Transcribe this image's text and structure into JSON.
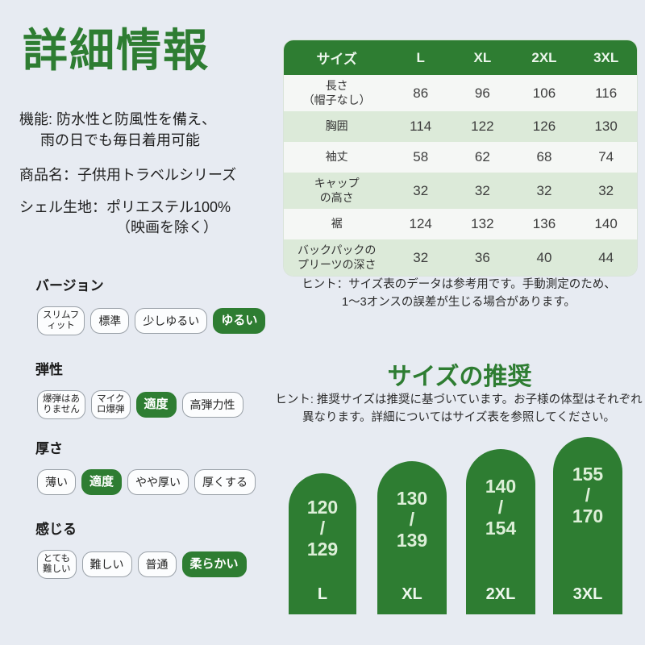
{
  "page": {
    "title": "詳細情報",
    "colors": {
      "accent_green": "#2e7d32",
      "row_green": "#dcead9",
      "row_white": "#f5f7f5",
      "background": "#e7ebf2"
    }
  },
  "info": {
    "feature_line1": "機能: 防水性と防風性を備え、",
    "feature_line2": "雨の日でも毎日着用可能",
    "product_name": "商品名：子供用トラベルシリーズ",
    "shell_line1": "シェル生地：ポリエステル100%",
    "shell_line2": "（映画を除く）"
  },
  "size_table": {
    "header": [
      "サイズ",
      "L",
      "XL",
      "2XL",
      "3XL"
    ],
    "rows": [
      {
        "label": "長さ\n（帽子なし）",
        "values": [
          "86",
          "96",
          "106",
          "116"
        ]
      },
      {
        "label": "胸囲",
        "values": [
          "114",
          "122",
          "126",
          "130"
        ]
      },
      {
        "label": "袖丈",
        "values": [
          "58",
          "62",
          "68",
          "74"
        ]
      },
      {
        "label": "キャップ\nの高さ",
        "values": [
          "32",
          "32",
          "32",
          "32"
        ]
      },
      {
        "label": "裾",
        "values": [
          "124",
          "132",
          "136",
          "140"
        ]
      },
      {
        "label": "バックパックの\nプリーツの深さ",
        "values": [
          "32",
          "36",
          "40",
          "44"
        ]
      }
    ],
    "hint": "ヒント：サイズ表のデータは参考用です。手動測定のため、\n1～3オンスの誤差が生じる場合があります。"
  },
  "attributes": [
    {
      "heading": "バージョン",
      "options": [
        {
          "label": "スリムフ\nィット",
          "selected": false
        },
        {
          "label": "標準",
          "selected": false
        },
        {
          "label": "少しゆるい",
          "selected": false
        },
        {
          "label": "ゆるい",
          "selected": true
        }
      ]
    },
    {
      "heading": "弾性",
      "options": [
        {
          "label": "爆弾はあ\nりません",
          "selected": false
        },
        {
          "label": "マイク\nロ爆弾",
          "selected": false
        },
        {
          "label": "適度",
          "selected": true
        },
        {
          "label": "高弾力性",
          "selected": false
        }
      ]
    },
    {
      "heading": "厚さ",
      "options": [
        {
          "label": "薄い",
          "selected": false
        },
        {
          "label": "適度",
          "selected": true
        },
        {
          "label": "やや厚い",
          "selected": false
        },
        {
          "label": "厚くする",
          "selected": false
        }
      ]
    },
    {
      "heading": "感じる",
      "options": [
        {
          "label": "とても\n難しい",
          "selected": false
        },
        {
          "label": "難しい",
          "selected": false
        },
        {
          "label": "普通",
          "selected": false
        },
        {
          "label": "柔らかい",
          "selected": true
        }
      ]
    }
  ],
  "recommendation": {
    "heading": "サイズの推奨",
    "hint": "ヒント: 推奨サイズは推奨に基づいています。お子様の体型はそれぞれ\n異なります。詳細についてはサイズ表を参照してください。",
    "bars": [
      {
        "size": "L",
        "height_range": "120\n/\n129"
      },
      {
        "size": "XL",
        "height_range": "130\n/\n139"
      },
      {
        "size": "2XL",
        "height_range": "140\n/\n154"
      },
      {
        "size": "3XL",
        "height_range": "155\n/\n170"
      }
    ]
  }
}
